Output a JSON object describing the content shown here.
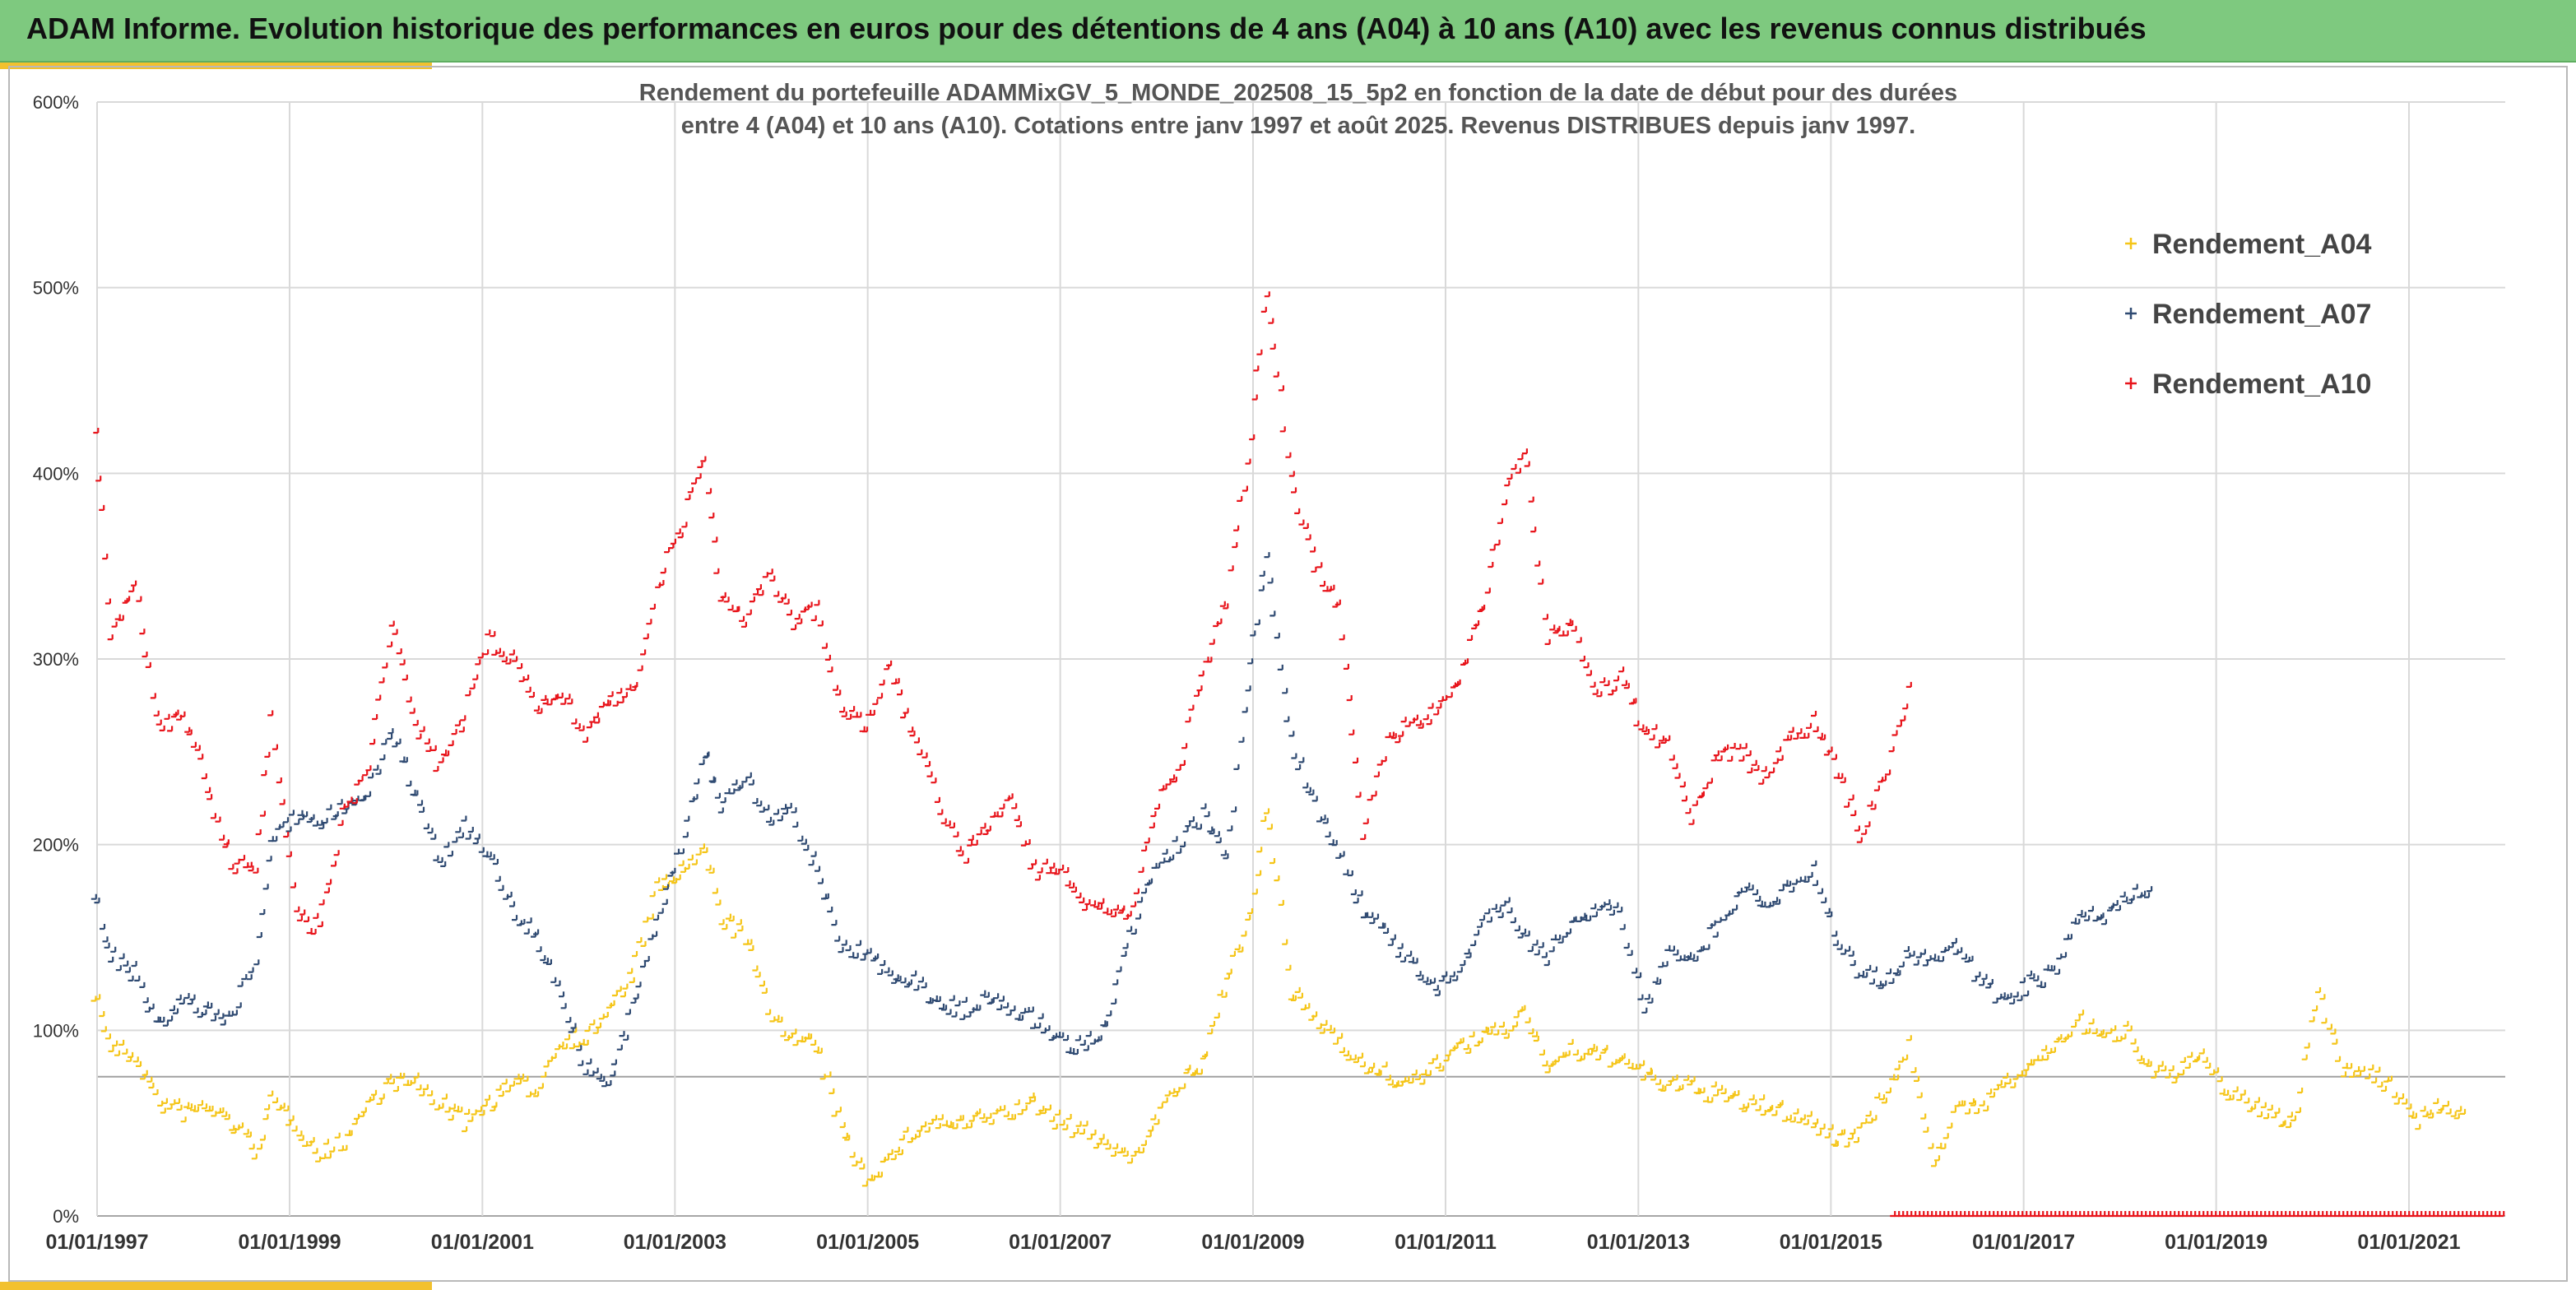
{
  "banner": {
    "title": "ADAM Informe. Evolution historique des performances en euros pour des détentions de 4 ans (A04) à 10 ans (A10) avec les revenus connus distribués"
  },
  "colors": {
    "banner": "#7ec97f",
    "accent": "#f2c12e",
    "a04": "#f5c518",
    "a07": "#2f4a72",
    "a10": "#e8141b",
    "grid": "#d9d9d9"
  },
  "chart_data": {
    "type": "scatter",
    "title_lines": [
      "Rendement du portefeuille ADAMMixGV_5_MONDE_202508_15_5p2  en fonction de la date de début pour des durées",
      "entre 4 (A04) et 10 ans (A10). Cotations entre janv 1997 et août 2025. Revenus DISTRIBUES depuis janv 1997."
    ],
    "xlabel": "",
    "ylabel": "",
    "x_ticks": [
      "01/01/1997",
      "01/01/1999",
      "01/01/2001",
      "01/01/2003",
      "01/01/2005",
      "01/01/2007",
      "01/01/2009",
      "01/01/2011",
      "01/01/2013",
      "01/01/2015",
      "01/01/2017",
      "01/01/2019",
      "01/01/2021"
    ],
    "xlim": [
      "1997-01-01",
      "2022-01-01"
    ],
    "y_ticks": [
      "0%",
      "100%",
      "200%",
      "300%",
      "400%",
      "500%",
      "600%"
    ],
    "ylim": [
      0,
      600
    ],
    "reference_line_y": 75,
    "grid": true,
    "legend_position": "top-right",
    "marker": "+",
    "series": [
      {
        "name": "Rendement_A04",
        "color": "#f5c518",
        "points": [
          [
            "1997-01-01",
            120
          ],
          [
            "1997-03-01",
            90
          ],
          [
            "1997-06-01",
            85
          ],
          [
            "1997-09-01",
            60
          ],
          [
            "1997-12-01",
            55
          ],
          [
            "1998-03-01",
            58
          ],
          [
            "1998-06-01",
            50
          ],
          [
            "1998-09-01",
            35
          ],
          [
            "1998-11-01",
            60
          ],
          [
            "1999-02-01",
            50
          ],
          [
            "1999-05-01",
            32
          ],
          [
            "1999-08-01",
            40
          ],
          [
            "1999-11-01",
            60
          ],
          [
            "2000-02-01",
            72
          ],
          [
            "2000-05-01",
            70
          ],
          [
            "2000-08-01",
            60
          ],
          [
            "2000-11-01",
            50
          ],
          [
            "2001-02-01",
            60
          ],
          [
            "2001-05-01",
            70
          ],
          [
            "2001-08-01",
            68
          ],
          [
            "2001-11-01",
            95
          ],
          [
            "2002-02-01",
            95
          ],
          [
            "2002-05-01",
            110
          ],
          [
            "2002-08-01",
            130
          ],
          [
            "2002-11-01",
            175
          ],
          [
            "2003-02-01",
            185
          ],
          [
            "2003-05-01",
            195
          ],
          [
            "2003-07-01",
            160
          ],
          [
            "2003-10-01",
            150
          ],
          [
            "2004-01-01",
            110
          ],
          [
            "2004-04-01",
            95
          ],
          [
            "2004-07-01",
            90
          ],
          [
            "2004-10-01",
            45
          ],
          [
            "2005-01-01",
            20
          ],
          [
            "2005-04-01",
            30
          ],
          [
            "2005-07-01",
            45
          ],
          [
            "2005-10-01",
            50
          ],
          [
            "2006-01-01",
            48
          ],
          [
            "2006-04-01",
            52
          ],
          [
            "2006-07-01",
            55
          ],
          [
            "2006-10-01",
            60
          ],
          [
            "2007-01-01",
            50
          ],
          [
            "2007-04-01",
            45
          ],
          [
            "2007-07-01",
            38
          ],
          [
            "2007-10-01",
            30
          ],
          [
            "2008-01-01",
            50
          ],
          [
            "2008-04-01",
            70
          ],
          [
            "2008-07-01",
            80
          ],
          [
            "2008-10-01",
            130
          ],
          [
            "2009-01-01",
            160
          ],
          [
            "2009-03-01",
            220
          ],
          [
            "2009-06-01",
            120
          ],
          [
            "2009-09-01",
            105
          ],
          [
            "2009-12-01",
            95
          ],
          [
            "2010-03-01",
            80
          ],
          [
            "2010-06-01",
            75
          ],
          [
            "2010-09-01",
            70
          ],
          [
            "2010-12-01",
            80
          ],
          [
            "2011-03-01",
            90
          ],
          [
            "2011-06-01",
            95
          ],
          [
            "2011-09-01",
            100
          ],
          [
            "2011-11-01",
            110
          ],
          [
            "2012-02-01",
            80
          ],
          [
            "2012-05-01",
            88
          ],
          [
            "2012-08-01",
            85
          ],
          [
            "2012-11-01",
            85
          ],
          [
            "2013-02-01",
            75
          ],
          [
            "2013-05-01",
            70
          ],
          [
            "2013-08-01",
            68
          ],
          [
            "2013-11-01",
            65
          ],
          [
            "2014-02-01",
            60
          ],
          [
            "2014-05-01",
            58
          ],
          [
            "2014-08-01",
            55
          ],
          [
            "2014-11-01",
            50
          ],
          [
            "2015-02-01",
            40
          ],
          [
            "2015-05-01",
            45
          ],
          [
            "2015-08-01",
            65
          ],
          [
            "2015-11-01",
            90
          ],
          [
            "2016-02-01",
            30
          ],
          [
            "2016-05-01",
            55
          ],
          [
            "2016-08-01",
            60
          ],
          [
            "2016-11-01",
            70
          ],
          [
            "2017-02-01",
            80
          ],
          [
            "2017-05-01",
            90
          ],
          [
            "2017-08-01",
            105
          ],
          [
            "2017-11-01",
            95
          ],
          [
            "2018-02-01",
            100
          ],
          [
            "2018-05-01",
            80
          ],
          [
            "2018-08-01",
            75
          ],
          [
            "2018-11-01",
            85
          ],
          [
            "2019-02-01",
            70
          ],
          [
            "2019-05-01",
            60
          ],
          [
            "2019-08-01",
            55
          ],
          [
            "2019-11-01",
            50
          ],
          [
            "2020-02-01",
            120
          ],
          [
            "2020-05-01",
            80
          ],
          [
            "2020-08-01",
            75
          ],
          [
            "2020-11-01",
            70
          ],
          [
            "2021-02-01",
            50
          ],
          [
            "2021-05-01",
            60
          ],
          [
            "2021-08-01",
            55
          ]
        ]
      },
      {
        "name": "Rendement_A07",
        "color": "#2f4a72",
        "points": [
          [
            "1997-01-01",
            170
          ],
          [
            "1997-03-01",
            140
          ],
          [
            "1997-06-01",
            130
          ],
          [
            "1997-09-01",
            100
          ],
          [
            "1997-12-01",
            115
          ],
          [
            "1998-03-01",
            110
          ],
          [
            "1998-06-01",
            105
          ],
          [
            "1998-09-01",
            140
          ],
          [
            "1998-11-01",
            200
          ],
          [
            "1999-02-01",
            215
          ],
          [
            "1999-05-01",
            210
          ],
          [
            "1999-08-01",
            220
          ],
          [
            "1999-11-01",
            230
          ],
          [
            "2000-02-01",
            260
          ],
          [
            "2000-05-01",
            225
          ],
          [
            "2000-08-01",
            190
          ],
          [
            "2000-11-01",
            210
          ],
          [
            "2001-02-01",
            195
          ],
          [
            "2001-05-01",
            165
          ],
          [
            "2001-08-01",
            150
          ],
          [
            "2001-11-01",
            120
          ],
          [
            "2002-02-01",
            80
          ],
          [
            "2002-05-01",
            70
          ],
          [
            "2002-08-01",
            110
          ],
          [
            "2002-11-01",
            160
          ],
          [
            "2003-02-01",
            200
          ],
          [
            "2003-05-01",
            250
          ],
          [
            "2003-07-01",
            220
          ],
          [
            "2003-10-01",
            235
          ],
          [
            "2004-01-01",
            215
          ],
          [
            "2004-04-01",
            215
          ],
          [
            "2004-07-01",
            185
          ],
          [
            "2004-10-01",
            145
          ],
          [
            "2005-01-01",
            140
          ],
          [
            "2005-04-01",
            130
          ],
          [
            "2005-07-01",
            125
          ],
          [
            "2005-10-01",
            115
          ],
          [
            "2006-01-01",
            110
          ],
          [
            "2006-04-01",
            115
          ],
          [
            "2006-07-01",
            112
          ],
          [
            "2006-10-01",
            105
          ],
          [
            "2007-01-01",
            95
          ],
          [
            "2007-04-01",
            90
          ],
          [
            "2007-07-01",
            100
          ],
          [
            "2007-10-01",
            150
          ],
          [
            "2008-01-01",
            185
          ],
          [
            "2008-04-01",
            200
          ],
          [
            "2008-07-01",
            215
          ],
          [
            "2008-10-01",
            190
          ],
          [
            "2009-01-01",
            300
          ],
          [
            "2009-03-01",
            355
          ],
          [
            "2009-06-01",
            255
          ],
          [
            "2009-09-01",
            220
          ],
          [
            "2009-12-01",
            195
          ],
          [
            "2010-03-01",
            165
          ],
          [
            "2010-06-01",
            150
          ],
          [
            "2010-09-01",
            135
          ],
          [
            "2010-12-01",
            120
          ],
          [
            "2011-03-01",
            130
          ],
          [
            "2011-06-01",
            160
          ],
          [
            "2011-09-01",
            165
          ],
          [
            "2011-11-01",
            150
          ],
          [
            "2012-02-01",
            140
          ],
          [
            "2012-05-01",
            155
          ],
          [
            "2012-08-01",
            165
          ],
          [
            "2012-11-01",
            165
          ],
          [
            "2013-02-01",
            110
          ],
          [
            "2013-05-01",
            140
          ],
          [
            "2013-08-01",
            140
          ],
          [
            "2013-11-01",
            155
          ],
          [
            "2014-02-01",
            175
          ],
          [
            "2014-05-01",
            170
          ],
          [
            "2014-08-01",
            175
          ],
          [
            "2014-11-01",
            185
          ],
          [
            "2015-02-01",
            150
          ],
          [
            "2015-05-01",
            130
          ],
          [
            "2015-08-01",
            125
          ],
          [
            "2015-11-01",
            140
          ],
          [
            "2016-02-01",
            135
          ],
          [
            "2016-05-01",
            145
          ],
          [
            "2016-08-01",
            125
          ],
          [
            "2016-11-01",
            115
          ],
          [
            "2017-02-01",
            125
          ],
          [
            "2017-05-01",
            130
          ],
          [
            "2017-08-01",
            160
          ],
          [
            "2017-11-01",
            160
          ],
          [
            "2018-02-01",
            170
          ],
          [
            "2018-05-01",
            175
          ]
        ]
      },
      {
        "name": "Rendement_A10",
        "color": "#e8141b",
        "points": [
          [
            "1997-01-01",
            420
          ],
          [
            "1997-03-01",
            310
          ],
          [
            "1997-06-01",
            340
          ],
          [
            "1997-09-01",
            260
          ],
          [
            "1997-12-01",
            270
          ],
          [
            "1998-03-01",
            230
          ],
          [
            "1998-06-01",
            190
          ],
          [
            "1998-09-01",
            185
          ],
          [
            "1998-11-01",
            265
          ],
          [
            "1999-02-01",
            160
          ],
          [
            "1999-05-01",
            155
          ],
          [
            "1999-08-01",
            215
          ],
          [
            "1999-11-01",
            240
          ],
          [
            "2000-02-01",
            320
          ],
          [
            "2000-05-01",
            265
          ],
          [
            "2000-08-01",
            240
          ],
          [
            "2000-11-01",
            270
          ],
          [
            "2001-02-01",
            310
          ],
          [
            "2001-05-01",
            300
          ],
          [
            "2001-08-01",
            275
          ],
          [
            "2001-11-01",
            280
          ],
          [
            "2002-02-01",
            260
          ],
          [
            "2002-05-01",
            275
          ],
          [
            "2002-08-01",
            280
          ],
          [
            "2002-11-01",
            340
          ],
          [
            "2003-02-01",
            370
          ],
          [
            "2003-05-01",
            410
          ],
          [
            "2003-07-01",
            330
          ],
          [
            "2003-10-01",
            320
          ],
          [
            "2004-01-01",
            345
          ],
          [
            "2004-04-01",
            320
          ],
          [
            "2004-07-01",
            325
          ],
          [
            "2004-10-01",
            270
          ],
          [
            "2005-01-01",
            265
          ],
          [
            "2005-04-01",
            295
          ],
          [
            "2005-07-01",
            255
          ],
          [
            "2005-10-01",
            225
          ],
          [
            "2006-01-01",
            190
          ],
          [
            "2006-04-01",
            210
          ],
          [
            "2006-07-01",
            225
          ],
          [
            "2006-10-01",
            185
          ],
          [
            "2007-01-01",
            185
          ],
          [
            "2007-04-01",
            170
          ],
          [
            "2007-07-01",
            165
          ],
          [
            "2007-10-01",
            160
          ],
          [
            "2008-01-01",
            220
          ],
          [
            "2008-04-01",
            240
          ],
          [
            "2008-07-01",
            290
          ],
          [
            "2008-10-01",
            330
          ],
          [
            "2009-01-01",
            420
          ],
          [
            "2009-03-01",
            500
          ],
          [
            "2009-06-01",
            395
          ],
          [
            "2009-09-01",
            350
          ],
          [
            "2009-12-01",
            330
          ],
          [
            "2010-03-01",
            205
          ],
          [
            "2010-06-01",
            255
          ],
          [
            "2010-09-01",
            265
          ],
          [
            "2010-12-01",
            270
          ],
          [
            "2011-03-01",
            290
          ],
          [
            "2011-06-01",
            330
          ],
          [
            "2011-09-01",
            390
          ],
          [
            "2011-11-01",
            415
          ],
          [
            "2012-02-01",
            310
          ],
          [
            "2012-05-01",
            320
          ],
          [
            "2012-08-01",
            280
          ],
          [
            "2012-11-01",
            290
          ],
          [
            "2013-02-01",
            260
          ],
          [
            "2013-05-01",
            255
          ],
          [
            "2013-08-01",
            215
          ],
          [
            "2013-11-01",
            245
          ],
          [
            "2014-02-01",
            250
          ],
          [
            "2014-05-01",
            235
          ],
          [
            "2014-08-01",
            255
          ],
          [
            "2014-11-01",
            265
          ],
          [
            "2015-02-01",
            240
          ],
          [
            "2015-05-01",
            205
          ],
          [
            "2015-08-01",
            235
          ],
          [
            "2015-11-01",
            285
          ]
        ]
      },
      {
        "name": "",
        "color": "#e8141b",
        "points_at_zero_from": "2015-09-01",
        "points_at_zero_to": "2022-01-01"
      }
    ]
  }
}
